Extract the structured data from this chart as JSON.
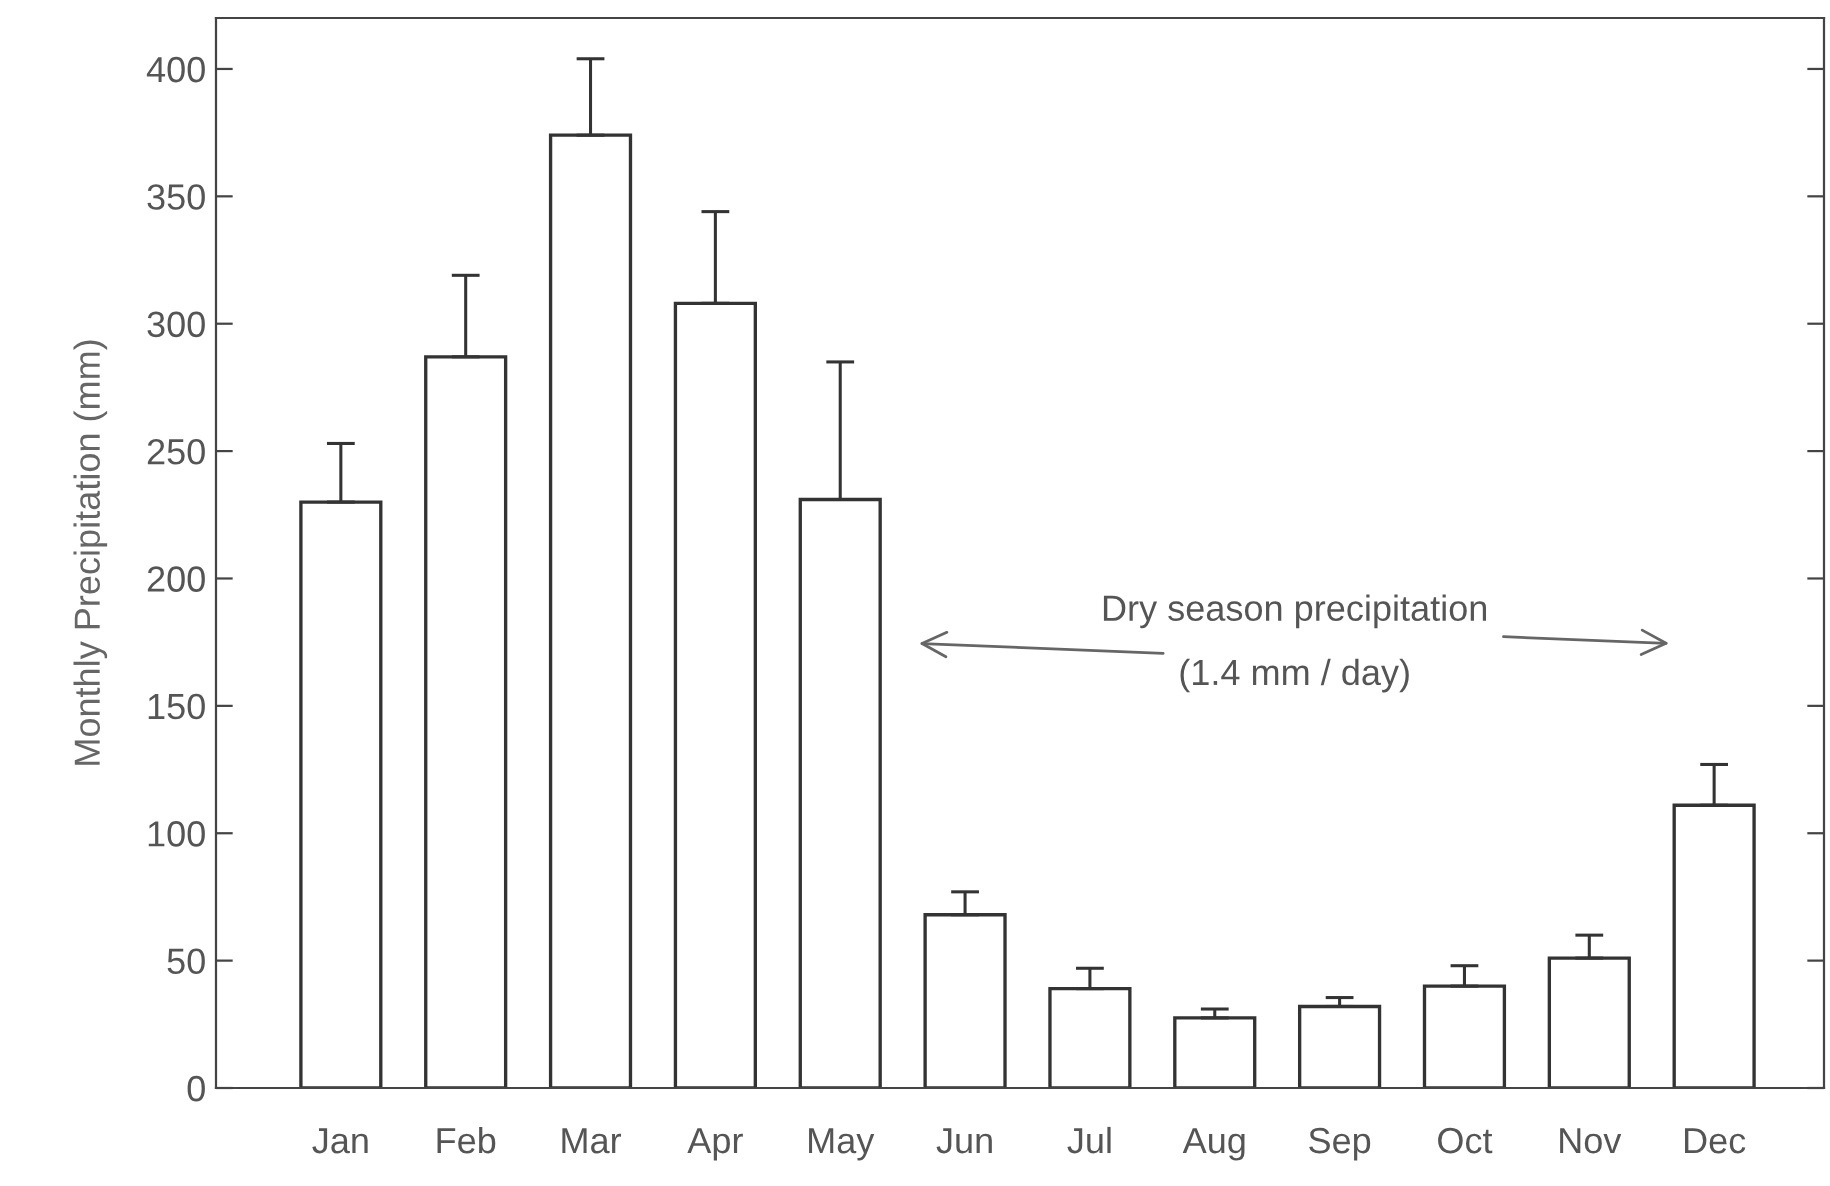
{
  "chart_data": {
    "type": "bar",
    "ylabel": "Monthly Precipitation (mm)",
    "categories": [
      "Jan",
      "Feb",
      "Mar",
      "Apr",
      "May",
      "Jun",
      "Jul",
      "Aug",
      "Sep",
      "Oct",
      "Nov",
      "Dec"
    ],
    "values": [
      230,
      287,
      374,
      308,
      231,
      68,
      39,
      27.5,
      32,
      40,
      51,
      111
    ],
    "errors": [
      [
        230,
        253
      ],
      [
        287,
        319
      ],
      [
        374,
        404
      ],
      [
        308,
        344
      ],
      [
        231,
        285
      ],
      [
        68,
        77
      ],
      [
        39,
        47
      ],
      [
        27.5,
        31
      ],
      [
        32,
        35.5
      ],
      [
        40,
        48
      ],
      [
        51,
        60
      ],
      [
        111,
        127
      ]
    ],
    "color": "#ffffff",
    "ylim": [
      0,
      420
    ],
    "yticks": [
      0,
      50,
      100,
      150,
      200,
      250,
      300,
      350,
      400
    ],
    "grid": false,
    "annotations": [
      "Dry season precipitation",
      "(1.4 mm / day)"
    ]
  }
}
